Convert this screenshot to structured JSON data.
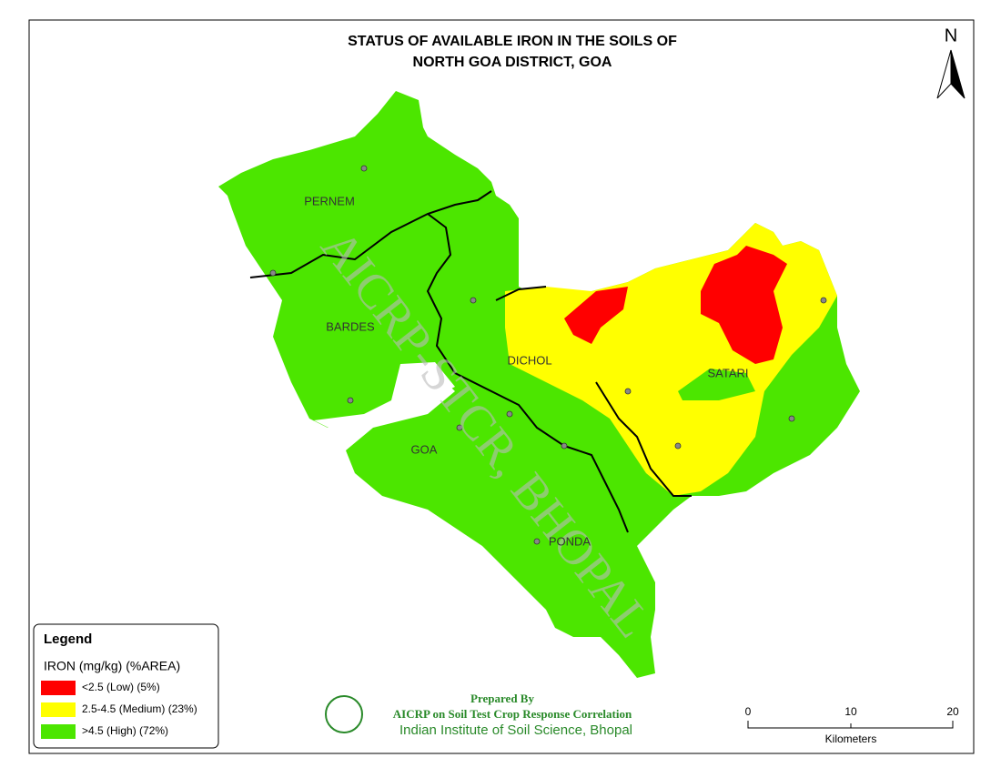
{
  "title": [
    "STATUS OF AVAILABLE IRON IN THE SOILS OF",
    "NORTH GOA  DISTRICT, GOA"
  ],
  "north": "N",
  "regions": [
    "PERNEM",
    "BARDES",
    "DICHOL",
    "SATARI",
    "GOA",
    "PONDA"
  ],
  "watermark": "AICRP-STCR, BHOPAL",
  "legend": {
    "title": "Legend",
    "subtitle": "IRON (mg/kg) (%AREA)",
    "items": [
      {
        "label": "<2.5 (Low) (5%)",
        "color": "#ff0000"
      },
      {
        "label": "2.5-4.5 (Medium) (23%)",
        "color": "#ffff00"
      },
      {
        "label": ">4.5 (High) (72%)",
        "color": "#4ce600"
      }
    ]
  },
  "credits": [
    "Prepared By",
    "AICRP on Soil Test Crop Response Correlation",
    "Indian Institute of Soil Science, Bhopal"
  ],
  "scale": {
    "ticks": [
      "0",
      "10",
      "20"
    ],
    "unit": "Kilometers"
  }
}
